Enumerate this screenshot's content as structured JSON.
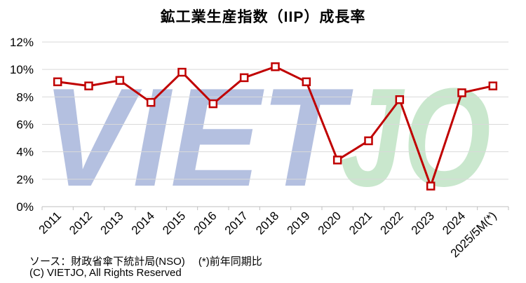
{
  "chart_data": {
    "type": "line",
    "title": "鉱工業生産指数（IIP）成長率",
    "categories": [
      "2011",
      "2012",
      "2013",
      "2014",
      "2015",
      "2016",
      "2017",
      "2018",
      "2019",
      "2020",
      "2021",
      "2022",
      "2023",
      "2024",
      "2025/5M(*)"
    ],
    "series": [
      {
        "values": [
          9.1,
          8.8,
          9.2,
          7.6,
          9.8,
          7.5,
          9.4,
          10.2,
          9.1,
          3.4,
          4.8,
          7.8,
          1.5,
          8.3,
          8.8
        ]
      }
    ],
    "y_ticks": [
      "0%",
      "2%",
      "4%",
      "6%",
      "8%",
      "10%",
      "12%"
    ],
    "ylim": [
      0,
      12
    ],
    "grid": "horizontal",
    "colors": {
      "line": "#c00000",
      "marker_fill": "#ffffff",
      "gridline": "#d9d9d9",
      "axis": "#bfbfbf"
    }
  },
  "watermark": {
    "text": "VIETJO",
    "part1": "VIET",
    "part2": "JO",
    "color1": "#b4c0e0",
    "color2": "#c9e7cd"
  },
  "footer": {
    "source": "ソース：財政省傘下統計局(NSO)　 (*)前年同期比",
    "copyright": "(C) VIETJO, All Rights Reserved"
  }
}
